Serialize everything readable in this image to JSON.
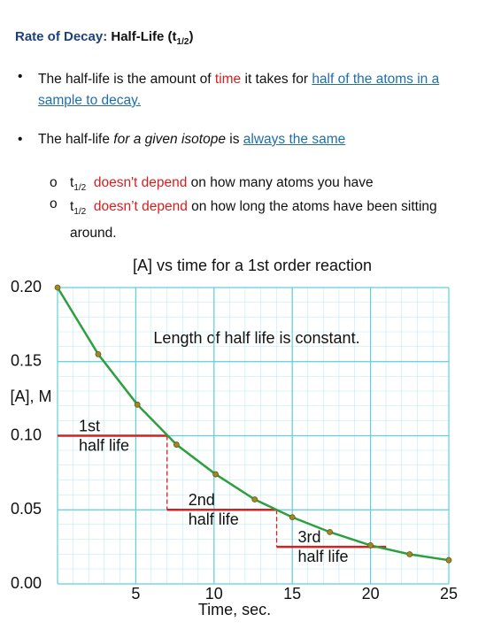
{
  "header": {
    "lead": "Rate of Decay:",
    "main": "Half-Life (t",
    "sub": "1/2",
    "close": ")"
  },
  "bullets": [
    {
      "marker": "•",
      "parts": [
        "The half-life is the amount of ",
        "time",
        " it takes for ",
        "half of the atoms in a sample to decay."
      ]
    },
    {
      "marker": "•",
      "parts": [
        "The half-life ",
        "for a given isotope",
        " is ",
        "always the same"
      ]
    }
  ],
  "sub_bullets": [
    {
      "marker": "o",
      "symbol": "t",
      "sub": "1/2",
      "parts": [
        "doesn't depend",
        " on how many atoms you have"
      ]
    },
    {
      "marker": "o",
      "symbol": "t",
      "sub": "1/2",
      "parts": [
        "doesn’t depend",
        " on how long the atoms have been sitting around."
      ]
    }
  ],
  "chart_data": {
    "type": "line",
    "title": "[A] vs time for a 1st order reaction",
    "annotation": "Length of half life is constant.",
    "x_label": "Time, sec.",
    "y_label": "[A], M",
    "xlim": [
      0,
      25
    ],
    "ylim": [
      0,
      0.2
    ],
    "xticks": [
      5,
      10,
      15,
      20,
      25
    ],
    "yticks": [
      {
        "value": 0,
        "label": "0.00"
      },
      {
        "value": 0.05,
        "label": "0.05"
      },
      {
        "value": 0.1,
        "label": "0.10"
      },
      {
        "value": 0.15,
        "label": "0.15"
      },
      {
        "value": 0.2,
        "label": "0.20"
      }
    ],
    "grid": true,
    "series": [
      {
        "color": "#2e9e3e",
        "marker_color": "#9a8a2a",
        "x": [
          0,
          2.6,
          5.1,
          7.6,
          10.1,
          12.6,
          15,
          17.4,
          20,
          22.5,
          25
        ],
        "values": [
          0.2,
          0.155,
          0.121,
          0.094,
          0.074,
          0.057,
          0.045,
          0.035,
          0.026,
          0.02,
          0.016
        ]
      }
    ],
    "half_lives": [
      {
        "ordinal": "1st",
        "text": "half life",
        "start": 0,
        "end": 7,
        "level": 0.1
      },
      {
        "ordinal": "2nd",
        "text": "half life",
        "start": 7,
        "end": 14,
        "level": 0.05
      },
      {
        "ordinal": "3rd",
        "text": "half life",
        "start": 14,
        "end": 21,
        "level": 0.025
      }
    ],
    "half_life_color": "#d42020"
  }
}
